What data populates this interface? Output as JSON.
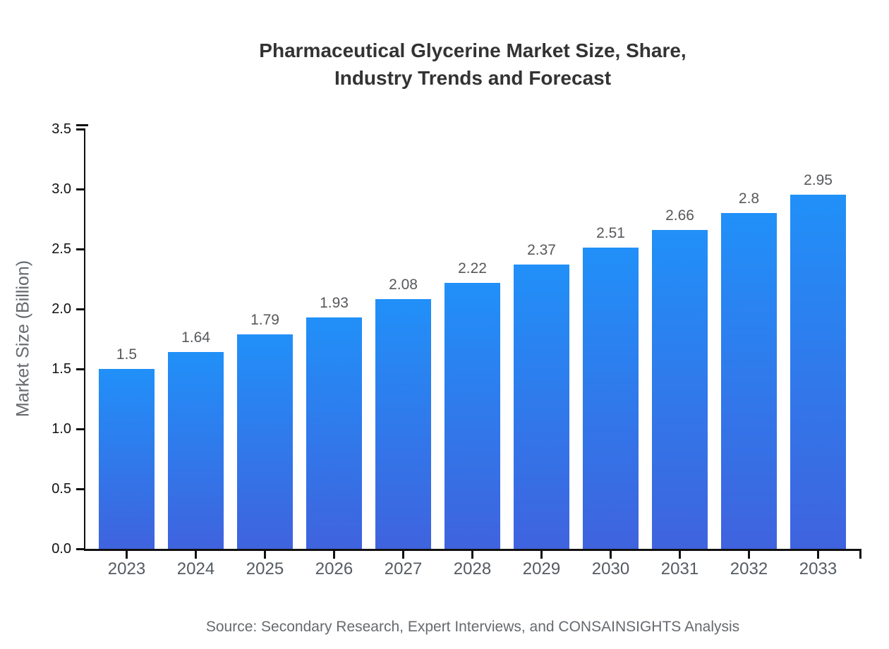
{
  "chart_data": {
    "type": "bar",
    "title": "Pharmaceutical Glycerine Market Size, Share,\nIndustry Trends and Forecast",
    "ylabel": "Market Size (Billion)",
    "xlabel": "",
    "categories": [
      "2023",
      "2024",
      "2025",
      "2026",
      "2027",
      "2028",
      "2029",
      "2030",
      "2031",
      "2032",
      "2033"
    ],
    "values": [
      1.5,
      1.64,
      1.79,
      1.93,
      2.08,
      2.22,
      2.37,
      2.51,
      2.66,
      2.8,
      2.95
    ],
    "value_labels": [
      "1.5",
      "1.64",
      "1.79",
      "1.93",
      "2.08",
      "2.22",
      "2.37",
      "2.51",
      "2.66",
      "2.8",
      "2.95"
    ],
    "ylim": [
      0,
      3.5
    ],
    "ytick_labels": [
      "0.0",
      "0.5",
      "1.0",
      "1.5",
      "2.0",
      "2.5",
      "3.0",
      "3.5"
    ],
    "grid": false,
    "legend": "none",
    "colors": {
      "bar_gradient_top": "#2190f8",
      "bar_gradient_bottom": "#3f63de",
      "axis": "#111111",
      "ytick_label": "#111111",
      "xtick_label": "#555b62",
      "value_label": "#56585b",
      "title": "#333333",
      "axis_title": "#666a6e"
    }
  },
  "source": {
    "text": "Source: Secondary Research, Expert Interviews, and CONSAINSIGHTS Analysis"
  }
}
